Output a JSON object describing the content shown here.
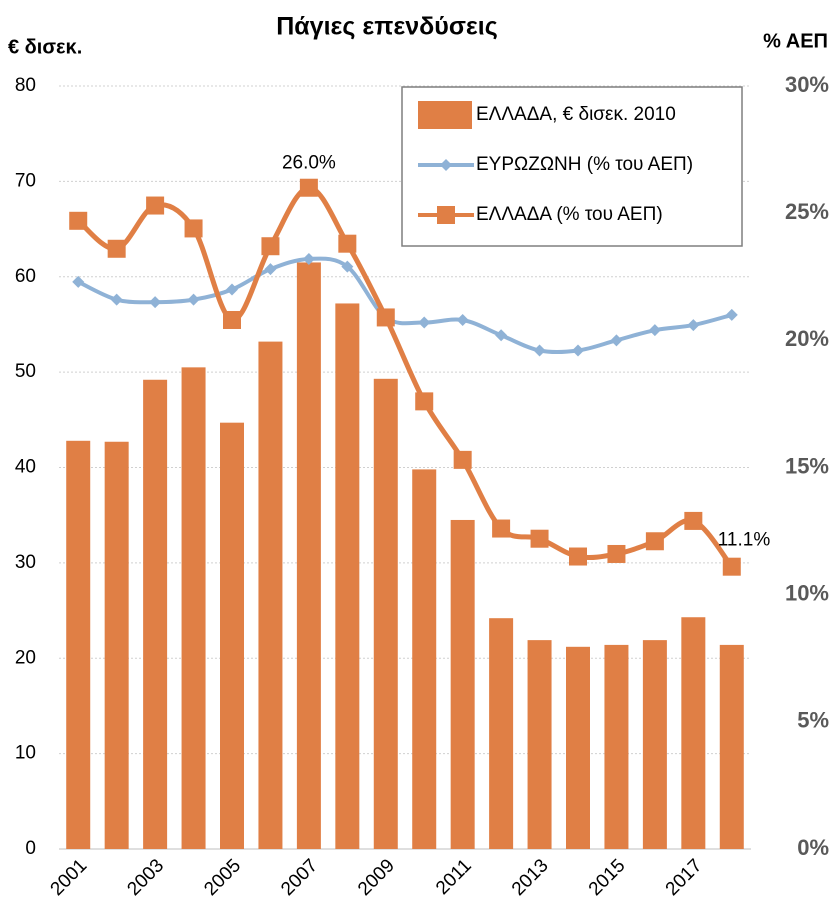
{
  "chart_data": {
    "type": "bar-line",
    "title": "Πάγιες επενδύσεις",
    "ylabel": "€ δισεκ.",
    "y2label": "% ΑΕΠ",
    "categories": [
      "2001",
      null,
      "2003",
      null,
      "2005",
      null,
      "2007",
      null,
      "2009",
      null,
      "2011",
      null,
      "2013",
      null,
      "2015",
      null,
      "2017",
      null
    ],
    "ylim": [
      0,
      80
    ],
    "yticks": [
      0,
      10,
      20,
      30,
      40,
      50,
      60,
      70,
      80
    ],
    "y2lim": [
      0,
      30
    ],
    "y2ticks": [
      {
        "value": 0,
        "label": "0%"
      },
      {
        "value": 5,
        "label": "5%"
      },
      {
        "value": 10,
        "label": "10%"
      },
      {
        "value": 15,
        "label": "15%"
      },
      {
        "value": 20,
        "label": "20%"
      },
      {
        "value": 25,
        "label": "25%"
      },
      {
        "value": 30,
        "label": "30%"
      }
    ],
    "grid": true,
    "legend": "upper right",
    "series": [
      {
        "name": "ΕΛΛΑΔΑ, € δισεκ. 2010",
        "type": "bar",
        "color": "#e07f45",
        "values": [
          42.8,
          42.7,
          49.2,
          50.5,
          44.7,
          53.2,
          61.5,
          57.2,
          49.3,
          39.8,
          34.5,
          24.2,
          21.9,
          21.2,
          21.4,
          21.9,
          24.3,
          21.4
        ]
      },
      {
        "name": "ΕΥΡΩΖΩΝΗ (% του ΑΕΠ)",
        "type": "line",
        "marker": "diamond",
        "axis": "y2",
        "color": "#8fb2d6",
        "values": [
          22.3,
          21.6,
          21.5,
          21.6,
          22.0,
          22.8,
          23.2,
          22.9,
          20.9,
          20.7,
          20.8,
          20.2,
          19.6,
          19.6,
          20.0,
          20.4,
          20.6,
          21.0
        ]
      },
      {
        "name": "ΕΛΛΑΔΑ (% του ΑΕΠ)",
        "type": "line",
        "marker": "square",
        "axis": "y2",
        "color": "#e07f45",
        "values": [
          24.7,
          23.6,
          25.3,
          24.4,
          20.8,
          23.7,
          26.0,
          23.8,
          20.9,
          17.6,
          15.3,
          12.6,
          12.2,
          11.5,
          11.6,
          12.1,
          12.9,
          11.1
        ],
        "value_labels": [
          null,
          null,
          null,
          null,
          null,
          null,
          "26.0%",
          null,
          null,
          null,
          null,
          null,
          null,
          null,
          null,
          null,
          null,
          "11.1%"
        ]
      }
    ]
  }
}
